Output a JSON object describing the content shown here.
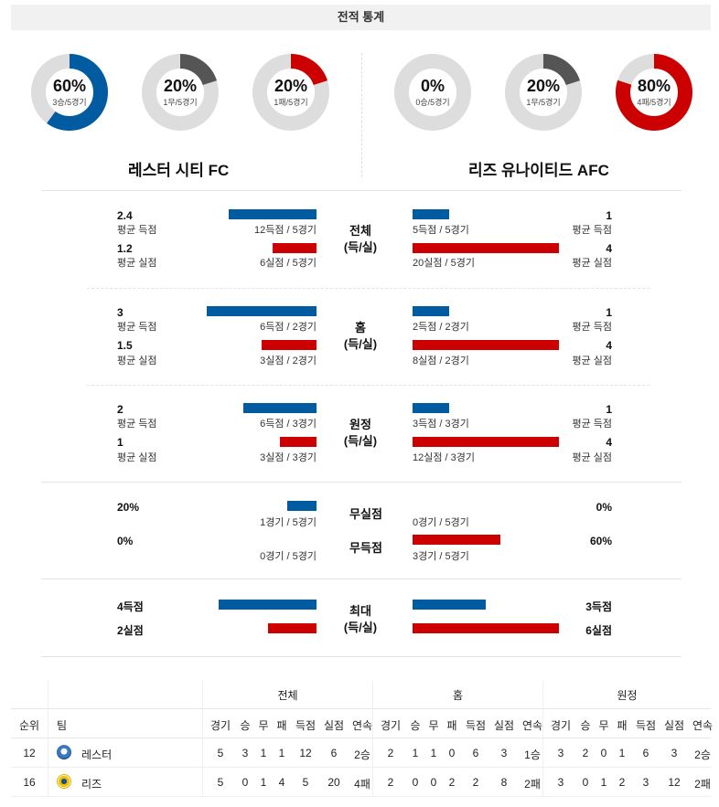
{
  "header": {
    "title": "전적 통계"
  },
  "teams": {
    "left": "레스터 시티 FC",
    "right": "리즈 유나이티드 AFC"
  },
  "donuts": {
    "left": [
      {
        "pct": "60%",
        "sub": "3승/5경기",
        "fraction": 0.6,
        "color": "#005ba1"
      },
      {
        "pct": "20%",
        "sub": "1무/5경기",
        "fraction": 0.2,
        "color": "#555555"
      },
      {
        "pct": "20%",
        "sub": "1패/5경기",
        "fraction": 0.2,
        "color": "#cc0000"
      }
    ],
    "right": [
      {
        "pct": "0%",
        "sub": "0승/5경기",
        "fraction": 0.0,
        "color": "#005ba1"
      },
      {
        "pct": "20%",
        "sub": "1무/5경기",
        "fraction": 0.2,
        "color": "#555555"
      },
      {
        "pct": "80%",
        "sub": "4패/5경기",
        "fraction": 0.8,
        "color": "#cc0000"
      }
    ]
  },
  "sections": [
    {
      "center": [
        "전체",
        "(득/실)"
      ],
      "left": [
        {
          "value": "2.4",
          "label": "평균 득점",
          "detail": "12득점 / 5경기",
          "bar": 2.4
        },
        {
          "value": "1.2",
          "label": "평균 실점",
          "detail": "6실점 / 5경기",
          "bar": 1.2
        }
      ],
      "right": [
        {
          "value": "1",
          "label": "평균 득점",
          "detail": "5득점 / 5경기",
          "bar": 1
        },
        {
          "value": "4",
          "label": "평균 실점",
          "detail": "20실점 / 5경기",
          "bar": 4
        }
      ]
    },
    {
      "center": [
        "홈",
        "(득/실)"
      ],
      "left": [
        {
          "value": "3",
          "label": "평균 득점",
          "detail": "6득점 / 2경기",
          "bar": 3
        },
        {
          "value": "1.5",
          "label": "평균 실점",
          "detail": "3실점 / 2경기",
          "bar": 1.5
        }
      ],
      "right": [
        {
          "value": "1",
          "label": "평균 득점",
          "detail": "2득점 / 2경기",
          "bar": 1
        },
        {
          "value": "4",
          "label": "평균 실점",
          "detail": "8실점 / 2경기",
          "bar": 4
        }
      ]
    },
    {
      "center": [
        "원정",
        "(득/실)"
      ],
      "left": [
        {
          "value": "2",
          "label": "평균 득점",
          "detail": "6득점 / 3경기",
          "bar": 2
        },
        {
          "value": "1",
          "label": "평균 실점",
          "detail": "3실점 / 3경기",
          "bar": 1
        }
      ],
      "right": [
        {
          "value": "1",
          "label": "평균 득점",
          "detail": "3득점 / 3경기",
          "bar": 1
        },
        {
          "value": "4",
          "label": "평균 실점",
          "detail": "12실점 / 3경기",
          "bar": 4
        }
      ]
    }
  ],
  "cleansheet": {
    "rows": [
      {
        "center": "무실점",
        "left_value": "20%",
        "left_detail": "1경기 / 5경기",
        "left_bar": 0.2,
        "right_value": "0%",
        "right_detail": "0경기 / 5경기",
        "right_bar": 0.0
      },
      {
        "center": "무득점",
        "left_value": "0%",
        "left_detail": "0경기 / 5경기",
        "left_bar": 0.0,
        "right_value": "60%",
        "right_detail": "3경기 / 5경기",
        "right_bar": 0.6
      }
    ]
  },
  "max": {
    "center": [
      "최대",
      "(득/실)"
    ],
    "left": [
      {
        "value": "4득점",
        "bar": 4
      },
      {
        "value": "2실점",
        "bar": 2
      }
    ],
    "right": [
      {
        "value": "3득점",
        "bar": 3
      },
      {
        "value": "6실점",
        "bar": 6
      }
    ]
  },
  "table": {
    "group_headers": [
      "전체",
      "홈",
      "원정"
    ],
    "col_rank": "순위",
    "col_team": "팀",
    "sub_headers": [
      "경기",
      "승",
      "무",
      "패",
      "득점",
      "실점",
      "연속"
    ],
    "rows": [
      {
        "rank": "12",
        "team": "레스터",
        "crest": "leicester-crest-icon",
        "total": [
          "5",
          "3",
          "1",
          "1",
          "12",
          "6",
          "2승"
        ],
        "home": [
          "2",
          "1",
          "1",
          "0",
          "6",
          "3",
          "1승"
        ],
        "away": [
          "3",
          "2",
          "0",
          "1",
          "6",
          "3",
          "2승"
        ]
      },
      {
        "rank": "16",
        "team": "리즈",
        "crest": "leeds-crest-icon",
        "total": [
          "5",
          "0",
          "1",
          "4",
          "5",
          "20",
          "4패"
        ],
        "home": [
          "2",
          "0",
          "0",
          "2",
          "2",
          "8",
          "2패"
        ],
        "away": [
          "3",
          "0",
          "1",
          "2",
          "3",
          "12",
          "2패"
        ]
      }
    ]
  },
  "colors": {
    "blue": "#005ba1",
    "red": "#cc0000",
    "draw": "#555555",
    "track": "#dddddd"
  }
}
